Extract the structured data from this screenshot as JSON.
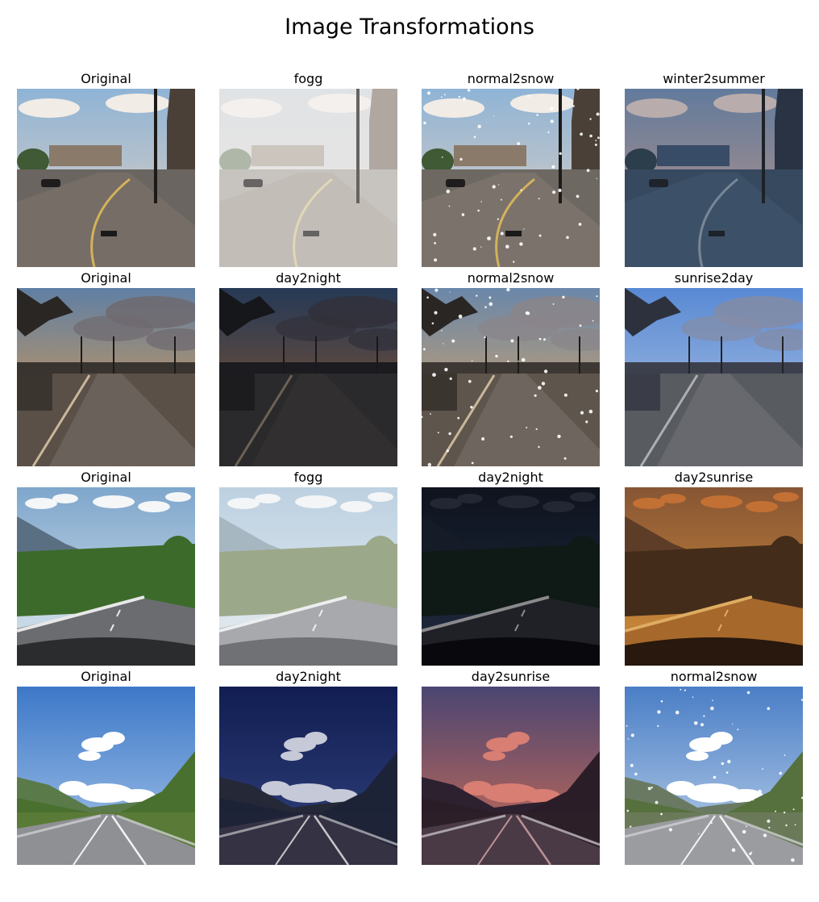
{
  "title": "Image Transformations",
  "rows": [
    {
      "scene": "town street with lamp post under cloudy sky",
      "panels": [
        {
          "label": "Original",
          "variant": "original"
        },
        {
          "label": "fogg",
          "variant": "fog"
        },
        {
          "label": "normal2snow",
          "variant": "snow"
        },
        {
          "label": "winter2summer",
          "variant": "winter2summer"
        }
      ]
    },
    {
      "scene": "sidewalk and road at sunset with street lights",
      "panels": [
        {
          "label": "Original",
          "variant": "original"
        },
        {
          "label": "day2night",
          "variant": "night"
        },
        {
          "label": "normal2snow",
          "variant": "snow"
        },
        {
          "label": "sunrise2day",
          "variant": "sunrise2day"
        }
      ]
    },
    {
      "scene": "forest road seen from car dashboard",
      "panels": [
        {
          "label": "Original",
          "variant": "original"
        },
        {
          "label": "fogg",
          "variant": "fog"
        },
        {
          "label": "day2night",
          "variant": "night"
        },
        {
          "label": "day2sunrise",
          "variant": "sunrise"
        }
      ]
    },
    {
      "scene": "highway between green hills under blue sky",
      "panels": [
        {
          "label": "Original",
          "variant": "original"
        },
        {
          "label": "day2night",
          "variant": "night"
        },
        {
          "label": "day2sunrise",
          "variant": "sunrise"
        },
        {
          "label": "normal2snow",
          "variant": "snow"
        }
      ]
    }
  ]
}
